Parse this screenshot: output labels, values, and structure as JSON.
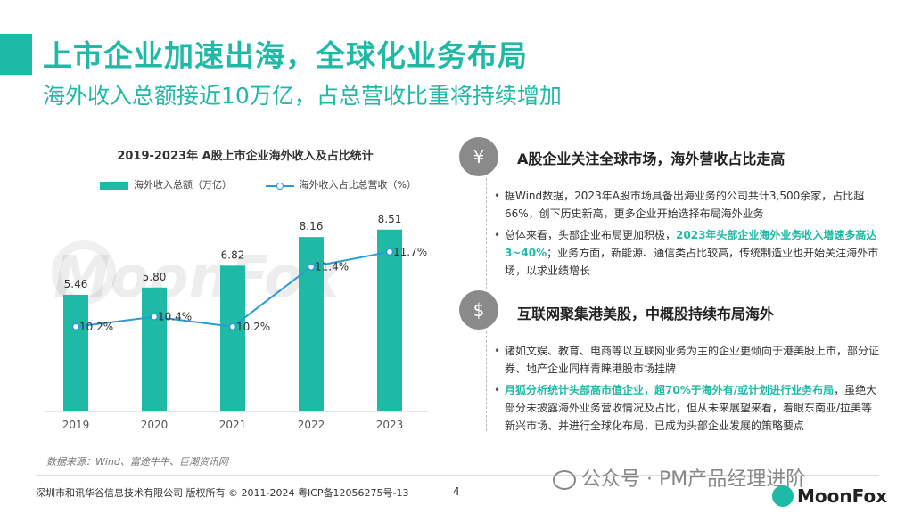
{
  "header": {
    "title": "上市企业加速出海，全球化业务布局",
    "subtitle": "海外收入总额接近10万亿，占总营收比重将持续增加"
  },
  "chart_data": {
    "type": "bar+line",
    "title": "2019-2023年 A股上市企业海外收入及占比统计",
    "categories": [
      "2019",
      "2020",
      "2021",
      "2022",
      "2023"
    ],
    "series": [
      {
        "name": "海外收入总额（万亿）",
        "type": "bar",
        "color": "#1fbaa6",
        "values": [
          5.46,
          5.8,
          6.82,
          8.16,
          8.51
        ],
        "labels": [
          "5.46",
          "5.80",
          "6.82",
          "8.16",
          "8.51"
        ]
      },
      {
        "name": "海外收入占比总营收（%）",
        "type": "line",
        "color": "#2b9bd4",
        "values": [
          10.2,
          10.4,
          10.2,
          11.4,
          11.7
        ],
        "labels": [
          "10.2%",
          "10.4%",
          "10.2%",
          "11.4%",
          "11.7%"
        ]
      }
    ],
    "bar_ylim": [
      0,
      10
    ],
    "line_ylim": [
      8.5,
      12.5
    ],
    "legend_position": "top"
  },
  "watermark": "MoonFox",
  "source": "数据来源：Wind、富途牛牛、巨潮资讯网",
  "sections": [
    {
      "icon": "yen-icon",
      "icon_glyph": "¥",
      "title": "A股企业关注全球市场，海外营收占比走高",
      "bullets": [
        {
          "parts": [
            {
              "text": "据Wind数据，2023年A股市场具备出海业务的公司共计3,500余家，占比超66%，创下历史新高，更多企业开始选择布局海外业务",
              "hl": false
            }
          ]
        },
        {
          "parts": [
            {
              "text": "总体来看，头部企业布局更加积极，",
              "hl": false
            },
            {
              "text": "2023年头部企业海外业务收入增速多高达3~40%",
              "hl": true
            },
            {
              "text": "；业务方面，新能源、通信类占比较高，传统制造业也开始关注海外市场，以求业绩增长",
              "hl": false
            }
          ]
        }
      ]
    },
    {
      "icon": "money-icon",
      "icon_glyph": "$",
      "title": "互联网聚集港美股，中概股持续布局海外",
      "bullets": [
        {
          "parts": [
            {
              "text": "诸如文娱、教育、电商等以互联网业务为主的企业更倾向于港美股上市，部分证券、地产企业同样青睐港股市场挂牌",
              "hl": false
            }
          ]
        },
        {
          "parts": [
            {
              "text": "月狐分析统计头部高市值企业，超70%于海外有/或计划进行业务布局",
              "hl": true
            },
            {
              "text": "，虽绝大部分未披露海外业务营收情况及占比，但从未来展望来看，着眼东南亚/拉美等新兴市场、并进行全球化布局，已成为头部企业发展的策略要点",
              "hl": false
            }
          ]
        }
      ]
    }
  ],
  "footer": {
    "copyright": "深圳市和讯华谷信息技术有限公司 版权所有 © 2011-2024 粤ICP备12056275号-13",
    "page": "4",
    "wechat": "公众号 · PM产品经理进阶",
    "logo": "MoonFox"
  }
}
